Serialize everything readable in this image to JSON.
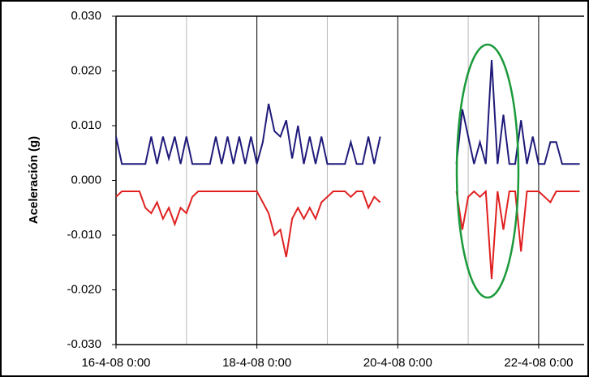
{
  "chart_data": {
    "type": "line",
    "y_label": "Aceleración (g)",
    "x": [
      "16-4-08 0:00",
      "16-4-08 2:00",
      "16-4-08 4:00",
      "16-4-08 6:00",
      "16-4-08 8:00",
      "16-4-08 10:00",
      "16-4-08 12:00",
      "16-4-08 14:00",
      "16-4-08 16:00",
      "16-4-08 18:00",
      "16-4-08 20:00",
      "16-4-08 22:00",
      "17-4-08 0:00",
      "17-4-08 2:00",
      "17-4-08 4:00",
      "17-4-08 6:00",
      "17-4-08 8:00",
      "17-4-08 10:00",
      "17-4-08 12:00",
      "17-4-08 14:00",
      "17-4-08 16:00",
      "17-4-08 18:00",
      "17-4-08 20:00",
      "17-4-08 22:00",
      "18-4-08 0:00",
      "18-4-08 2:00",
      "18-4-08 4:00",
      "18-4-08 6:00",
      "18-4-08 8:00",
      "18-4-08 10:00",
      "18-4-08 12:00",
      "18-4-08 14:00",
      "18-4-08 16:00",
      "18-4-08 18:00",
      "18-4-08 20:00",
      "18-4-08 22:00",
      "19-4-08 0:00",
      "19-4-08 2:00",
      "19-4-08 4:00",
      "19-4-08 6:00",
      "19-4-08 8:00",
      "19-4-08 10:00",
      "19-4-08 12:00",
      "19-4-08 14:00",
      "19-4-08 16:00",
      "19-4-08 18:00",
      "20-4-08 8:00",
      "20-4-08 20:00",
      "20-4-08 22:00",
      "21-4-08 0:00",
      "21-4-08 2:00",
      "21-4-08 4:00",
      "21-4-08 6:00",
      "21-4-08 8:00",
      "21-4-08 10:00",
      "21-4-08 12:00",
      "21-4-08 14:00",
      "21-4-08 16:00",
      "21-4-08 18:00",
      "21-4-08 20:00",
      "21-4-08 22:00",
      "22-4-08 0:00",
      "22-4-08 2:00",
      "22-4-08 4:00",
      "22-4-08 6:00",
      "22-4-08 8:00",
      "22-4-08 10:00",
      "22-4-08 12:00",
      "22-4-08 14:00"
    ],
    "series": [
      {
        "color": "#1f1a7a",
        "values": [
          0.008,
          0.003,
          0.003,
          0.003,
          0.003,
          0.003,
          0.008,
          0.003,
          0.008,
          0.004,
          0.008,
          0.003,
          0.008,
          0.003,
          0.003,
          0.003,
          0.003,
          0.008,
          0.003,
          0.008,
          0.003,
          0.008,
          0.003,
          0.008,
          0.003,
          0.007,
          0.014,
          0.009,
          0.008,
          0.011,
          0.004,
          0.01,
          0.003,
          0.008,
          0.003,
          0.008,
          0.003,
          0.003,
          0.003,
          0.003,
          0.007,
          0.003,
          0.003,
          0.008,
          0.003,
          0.008,
          null,
          0.003,
          0.013,
          0.008,
          0.003,
          0.007,
          0.003,
          0.022,
          0.003,
          0.012,
          0.003,
          0.003,
          0.011,
          0.003,
          0.008,
          0.003,
          0.003,
          0.007,
          0.007,
          0.003,
          0.003,
          0.003,
          0.003
        ]
      },
      {
        "color": "#e02020",
        "values": [
          -0.003,
          -0.002,
          -0.002,
          -0.002,
          -0.002,
          -0.005,
          -0.006,
          -0.004,
          -0.007,
          -0.005,
          -0.008,
          -0.005,
          -0.006,
          -0.003,
          -0.002,
          -0.002,
          -0.002,
          -0.002,
          -0.002,
          -0.002,
          -0.002,
          -0.002,
          -0.002,
          -0.002,
          -0.002,
          -0.004,
          -0.006,
          -0.01,
          -0.009,
          -0.014,
          -0.007,
          -0.005,
          -0.007,
          -0.005,
          -0.007,
          -0.004,
          -0.003,
          -0.002,
          -0.002,
          -0.002,
          -0.003,
          -0.002,
          -0.002,
          -0.005,
          -0.003,
          -0.004,
          null,
          -0.002,
          -0.009,
          -0.003,
          -0.002,
          -0.003,
          -0.002,
          -0.018,
          -0.002,
          -0.009,
          -0.002,
          -0.002,
          -0.013,
          -0.002,
          -0.002,
          -0.002,
          -0.003,
          -0.004,
          -0.002,
          -0.002,
          -0.002,
          -0.002,
          -0.002
        ]
      }
    ],
    "xlim": [
      "16-4-08 0:00",
      "22-4-08 15:30"
    ],
    "xticks": [
      "16-4-08 0:00",
      "18-4-08 0:00",
      "20-4-08 0:00",
      "22-4-08 0:00"
    ],
    "x_minor_gridlines": [
      "17-4-08 0:00",
      "19-4-08 0:00",
      "21-4-08 0:00"
    ],
    "ylim": [
      -0.03,
      0.03
    ],
    "yticks": [
      {
        "value": -0.03,
        "label": "-0.030"
      },
      {
        "value": -0.02,
        "label": "-0.020"
      },
      {
        "value": -0.01,
        "label": "-0.010"
      },
      {
        "value": 0,
        "label": "0.000"
      },
      {
        "value": 0.01,
        "label": "0.010"
      },
      {
        "value": 0.02,
        "label": "0.020"
      },
      {
        "value": 0.03,
        "label": "0.030"
      }
    ],
    "grid": true
  }
}
